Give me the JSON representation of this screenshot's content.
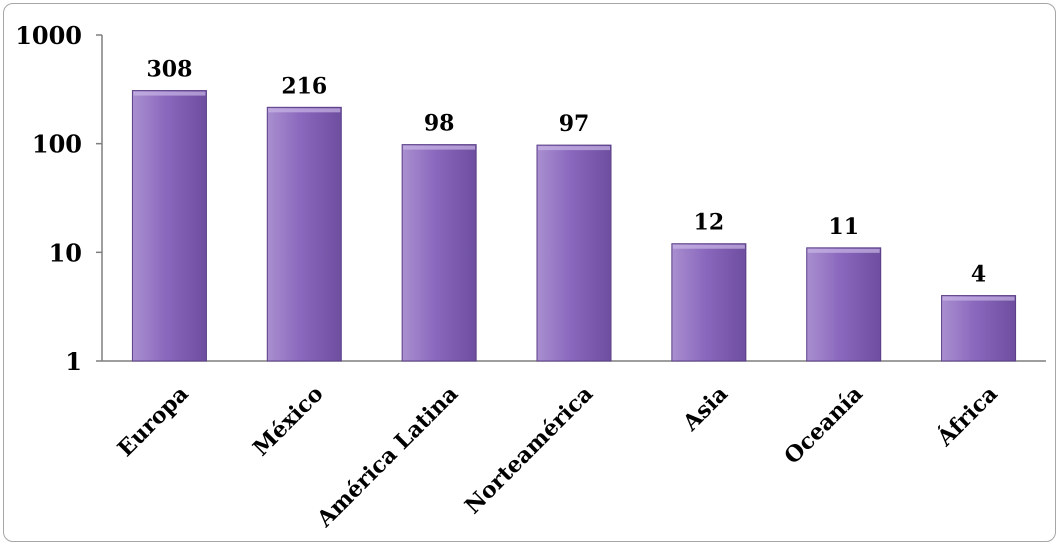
{
  "chart_data": {
    "type": "bar",
    "title": "",
    "xlabel": "",
    "ylabel": "",
    "yscale": "log",
    "ylim": [
      1,
      1000
    ],
    "yticks": [
      {
        "value": 1,
        "label": "1"
      },
      {
        "value": 10,
        "label": "10"
      },
      {
        "value": 100,
        "label": "100"
      },
      {
        "value": 1000,
        "label": "1000"
      }
    ],
    "categories": [
      "Europa",
      "México",
      "América Latina",
      "Norteamérica",
      "Asia",
      "Oceanía",
      "África"
    ],
    "values": [
      308,
      216,
      98,
      97,
      12,
      11,
      4
    ],
    "data_labels": [
      "308",
      "216",
      "98",
      "97",
      "12",
      "11",
      "4"
    ],
    "grid": false,
    "legend": "none",
    "colors": {
      "bar_top": "#a98fd0",
      "bar_mid": "#8a68bd",
      "bar_bottom": "#6e4e9f",
      "bar_edge": "#5a3e86",
      "axis": "#7f7f7f",
      "frame": "#a6a6a6"
    }
  }
}
